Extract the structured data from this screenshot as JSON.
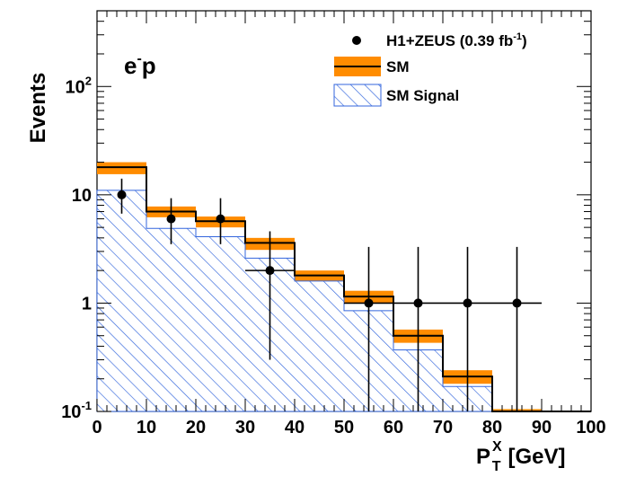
{
  "chart_data": {
    "type": "histogram",
    "x_axis": {
      "label": "P",
      "label_superscript": "X",
      "label_subscript": "T",
      "label_unit": "[GeV]",
      "range": [
        0,
        100
      ],
      "tick_labels": [
        "0",
        "10",
        "20",
        "30",
        "40",
        "50",
        "60",
        "70",
        "80",
        "90",
        "100"
      ]
    },
    "y_axis": {
      "label": "Events",
      "scale": "log",
      "range": [
        0.1,
        500
      ],
      "tick_labels": [
        {
          "value": 0.1,
          "base": "10",
          "exp": "-1"
        },
        {
          "value": 1,
          "base": "1",
          "exp": ""
        },
        {
          "value": 10,
          "base": "10",
          "exp": ""
        },
        {
          "value": 100,
          "base": "10",
          "exp": "2"
        }
      ]
    },
    "panel_label": {
      "base": "e",
      "sup": "-",
      "rest": "p"
    },
    "legend": {
      "placement": "top-right",
      "entries": [
        {
          "key": "data",
          "pre": "H1+ZEUS (0.39 fb",
          "sup": "-1",
          "post": ")"
        },
        {
          "key": "sm",
          "pre": "SM",
          "sup": "",
          "post": ""
        },
        {
          "key": "signal",
          "pre": "SM Signal",
          "sup": "",
          "post": ""
        }
      ]
    },
    "bin_edges": [
      0,
      10,
      20,
      30,
      40,
      50,
      60,
      70,
      80,
      90,
      100
    ],
    "series": [
      {
        "name": "SM",
        "kind": "band",
        "values": [
          18,
          7,
          5.7,
          3.6,
          1.8,
          1.15,
          0.5,
          0.21,
          0.1,
          0.1
        ],
        "band_low": [
          15.5,
          6.2,
          5.0,
          3.1,
          1.6,
          1.0,
          0.43,
          0.18,
          0.1,
          0.1
        ],
        "band_high": [
          20,
          7.8,
          6.3,
          4.0,
          2.0,
          1.3,
          0.57,
          0.24,
          0.105,
          0.1
        ],
        "color": "#ff8c00"
      },
      {
        "name": "SM Signal",
        "kind": "hatched",
        "values": [
          11,
          4.9,
          4.1,
          2.6,
          1.6,
          0.85,
          0.37,
          0.17,
          0.1,
          0.1
        ],
        "color": "#3366dd"
      },
      {
        "name": "H1+ZEUS (0.39 fb-1)",
        "kind": "points",
        "x": [
          5,
          15,
          25,
          35,
          55,
          65,
          75,
          85
        ],
        "y": [
          10,
          6,
          6,
          2,
          1,
          1,
          1,
          1
        ],
        "err_low": [
          3.3,
          2.5,
          2.5,
          1.7,
          1.0,
          1.0,
          1.0,
          1.0
        ],
        "err_high": [
          4.1,
          3.3,
          3.3,
          2.6,
          2.3,
          2.3,
          2.3,
          2.3
        ],
        "x_err": [
          0,
          0,
          0,
          5,
          5,
          5,
          5,
          5
        ],
        "color": "#000000"
      }
    ]
  }
}
